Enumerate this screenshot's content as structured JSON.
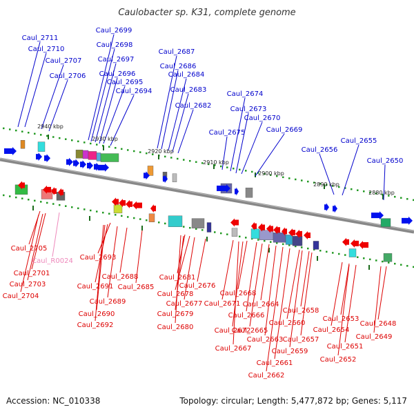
{
  "title": "Caulobacter sp. K31, complete genome",
  "footer": {
    "accession": "Accession: NC_010338",
    "summary": "Topology: circular; Length: 5,477,872 bp; Genes: 5,117"
  },
  "colors": {
    "forward_label": "#0000cc",
    "reverse_label": "#dd0000",
    "rna_label": "#ee88bb",
    "forward_gene": "#0011ee",
    "reverse_gene": "#ee0000",
    "backbone": "#888888"
  },
  "scale": [
    "2940 kbp",
    "2930 kbp",
    "2920 kbp",
    "2910 kbp",
    "2900 kbp",
    "2890 kbp",
    "2880 kbp"
  ],
  "top_labels": [
    "Caul_2711",
    "Caul_2710",
    "Caul_2707",
    "Caul_2706",
    "Caul_2699",
    "Caul_2698",
    "Caul_2697",
    "Caul_2696",
    "Caul_2695",
    "Caul_2694",
    "Caul_2687",
    "Caul_2686",
    "Caul_2684",
    "Caul_2683",
    "Caul_2682",
    "Caul_2674",
    "Caul_2675",
    "Caul_2673",
    "Caul_2670",
    "Caul_2669",
    "Caul_2656",
    "Caul_2655",
    "Caul_2650"
  ],
  "bottom_labels": [
    "Caul_2705",
    "Caul_R0024",
    "Caul_2701",
    "Caul_2703",
    "Caul_2704",
    "Caul_2693",
    "Caul_2691",
    "Caul_2688",
    "Caul_2685",
    "Caul_2689",
    "Caul_2690",
    "Caul_2692",
    "Caul_2681",
    "Caul_2678",
    "Caul_2677",
    "Caul_2679",
    "Caul_2680",
    "Caul_2676",
    "Caul_2668",
    "Caul_2671",
    "Caul_2666",
    "Caul_2664",
    "Caul_2672",
    "Caul_2665",
    "Caul_2663",
    "Caul_2667",
    "Caul_2661",
    "Caul_2662",
    "Caul_2658",
    "Caul_2660",
    "Caul_2659",
    "Caul_2657",
    "Caul_2653",
    "Caul_2654",
    "Caul_2651",
    "Caul_2652",
    "Caul_2648",
    "Caul_2649"
  ]
}
